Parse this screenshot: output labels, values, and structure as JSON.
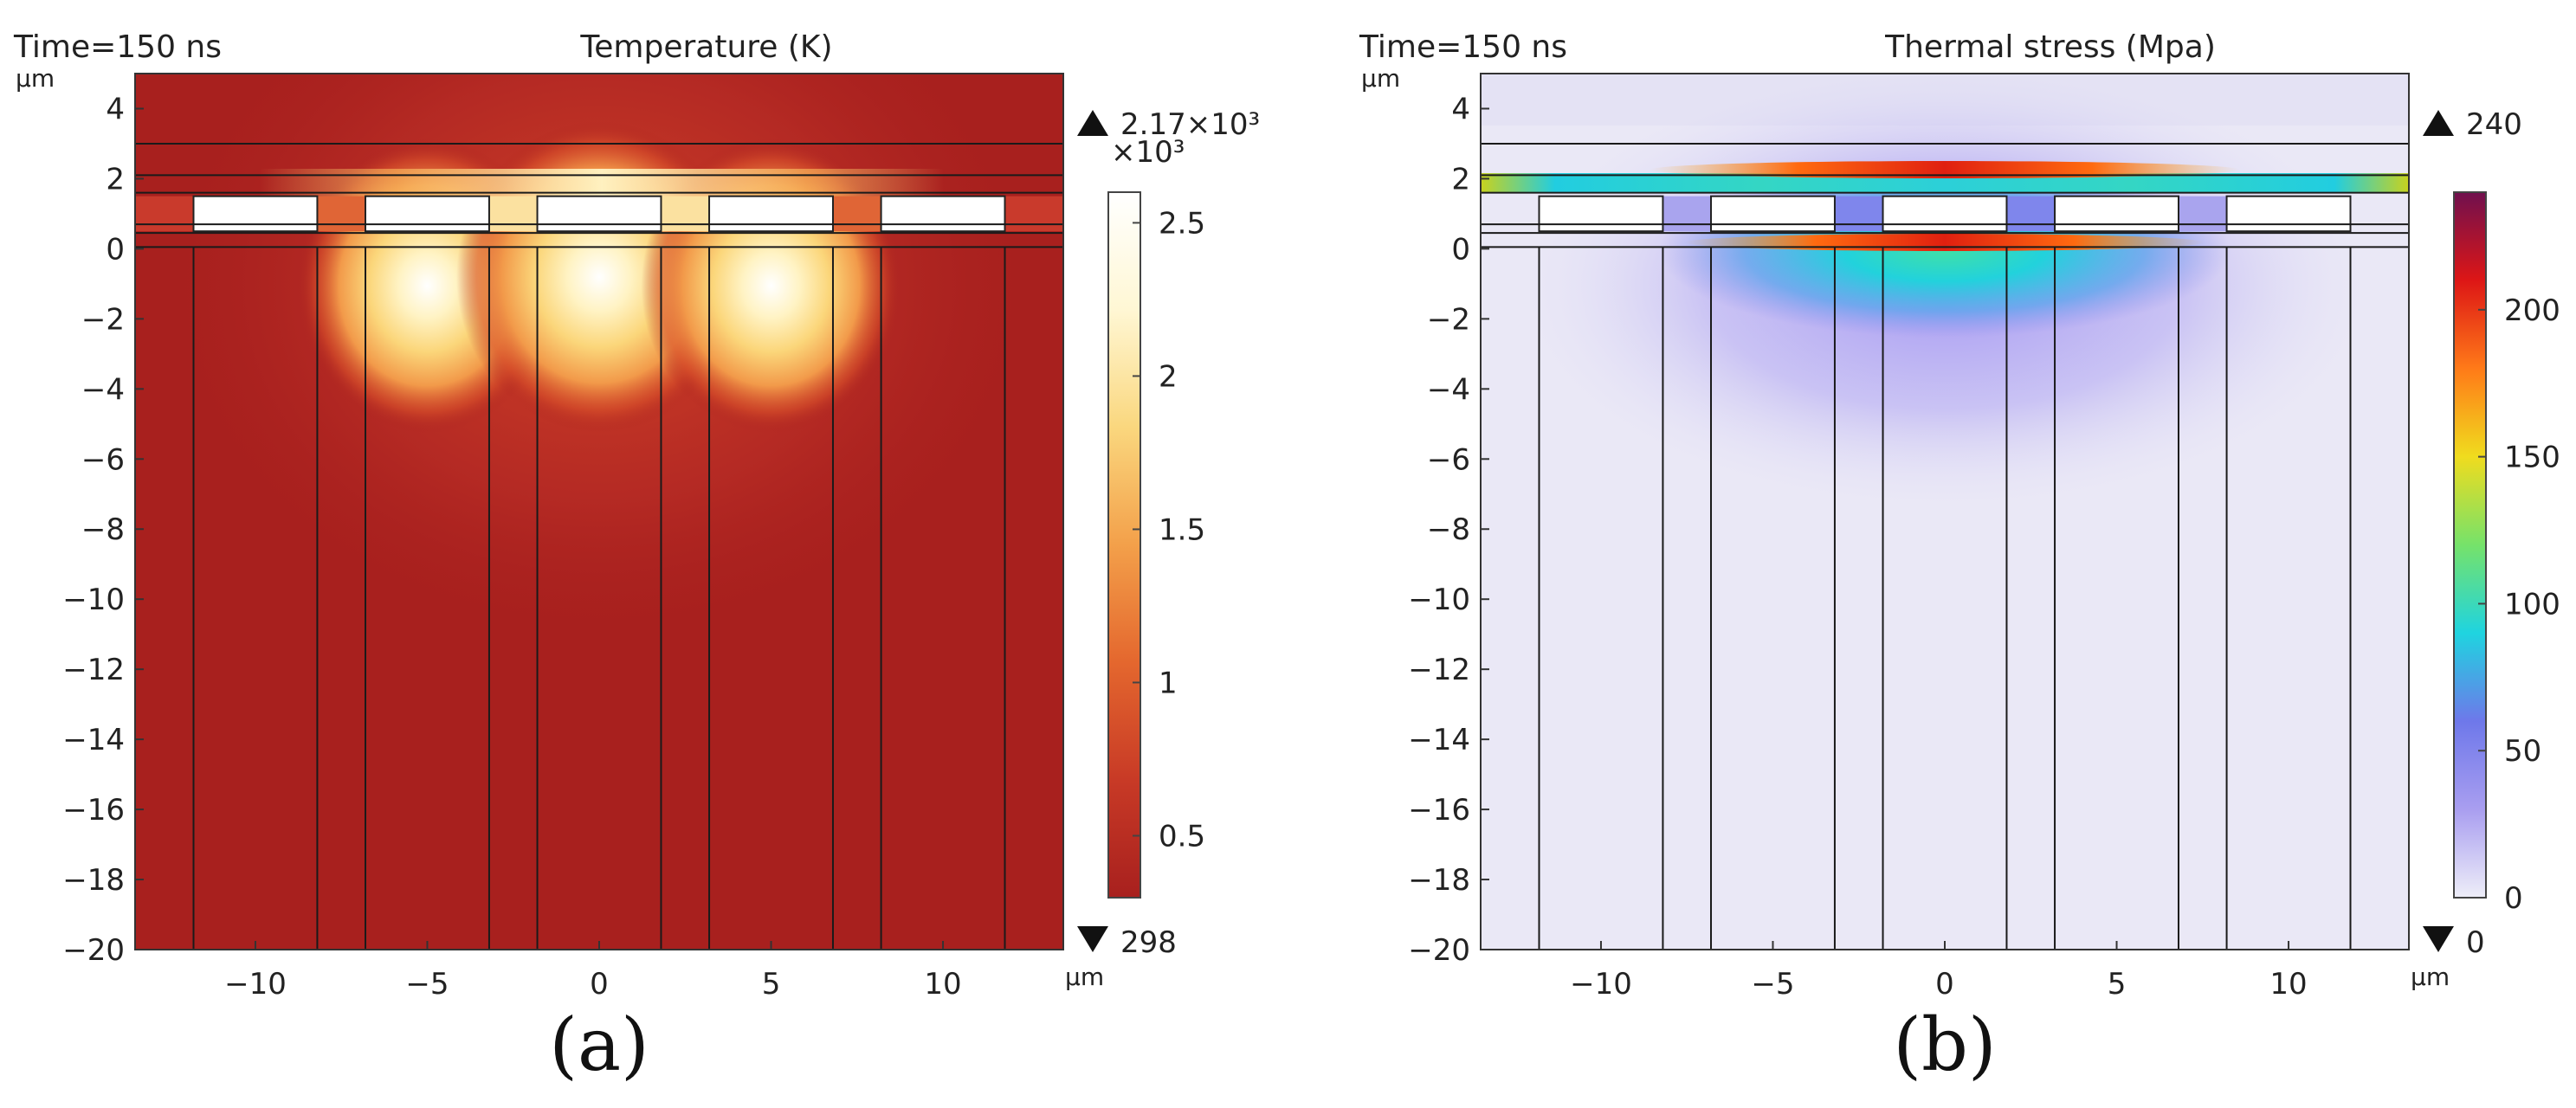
{
  "chart_data": [
    {
      "type": "heatmap",
      "panel_label": "(a)",
      "time_label": "Time=150 ns",
      "title": "Temperature (K)",
      "axis_unit": "µm",
      "xlim": [
        -13.5,
        13.5
      ],
      "ylim": [
        -20,
        5
      ],
      "x_ticks": [
        -10,
        -5,
        0,
        5,
        10
      ],
      "x_tick_labels": [
        "−10",
        "−5",
        "0",
        "5",
        "10"
      ],
      "y_ticks": [
        4,
        2,
        0,
        -2,
        -4,
        -6,
        -8,
        -10,
        -12,
        -14,
        -16,
        -18,
        -20
      ],
      "y_tick_labels": [
        "4",
        "2",
        "0",
        "−2",
        "−4",
        "−6",
        "−8",
        "−10",
        "−12",
        "−14",
        "−16",
        "−18",
        "−20"
      ],
      "colorbar": {
        "max_label": "2.17×10³",
        "min_label": "298",
        "multiplier_label": "×10³",
        "ticks": [
          2.5,
          2,
          1.5,
          1,
          0.5
        ],
        "tick_labels": [
          "2.5",
          "2",
          "1.5",
          "1",
          "0.5"
        ],
        "range": [
          0.298,
          2.6
        ],
        "colors": [
          "#a8201e",
          "#c83a26",
          "#e4672e",
          "#f3a04a",
          "#fad77e",
          "#fff7d4",
          "#ffffff"
        ]
      },
      "hotspots_x_um": [
        -5,
        0,
        5
      ],
      "peak_value": 2170
    },
    {
      "type": "heatmap",
      "panel_label": "(b)",
      "time_label": "Time=150 ns",
      "title": "Thermal stress (Mpa)",
      "axis_unit": "µm",
      "xlim": [
        -13.5,
        13.5
      ],
      "ylim": [
        -20,
        5
      ],
      "x_ticks": [
        -10,
        -5,
        0,
        5,
        10
      ],
      "x_tick_labels": [
        "−10",
        "−5",
        "0",
        "5",
        "10"
      ],
      "y_ticks": [
        4,
        2,
        0,
        -2,
        -4,
        -6,
        -8,
        -10,
        -12,
        -14,
        -16,
        -18,
        -20
      ],
      "y_tick_labels": [
        "4",
        "2",
        "0",
        "−2",
        "−4",
        "−6",
        "−8",
        "−10",
        "−12",
        "−14",
        "−16",
        "−18",
        "−20"
      ],
      "colorbar": {
        "max_label": "240",
        "min_label": "0",
        "ticks": [
          200,
          150,
          100,
          50,
          0
        ],
        "tick_labels": [
          "200",
          "150",
          "100",
          "50",
          "0"
        ],
        "range": [
          0,
          240
        ],
        "colors": [
          "#eeeef8",
          "#a99ef0",
          "#6e78ea",
          "#1fd4e0",
          "#76e26a",
          "#f0dc1e",
          "#ff7a18",
          "#dd1616",
          "#70104e"
        ]
      },
      "peak_value": 240
    }
  ],
  "structure": {
    "layer_lines_y_um": [
      3.0,
      2.1,
      1.6,
      0.7,
      0.45,
      0.05
    ],
    "pillar_boundaries_x_um": [
      -11.8,
      -8.2,
      -6.8,
      -3.2,
      -1.8,
      1.8,
      3.2,
      6.8,
      8.2,
      11.8
    ],
    "voids_x_um": [
      [
        -11.8,
        -8.2
      ],
      [
        -6.8,
        -3.2
      ],
      [
        -1.8,
        1.8
      ],
      [
        3.2,
        6.8
      ],
      [
        8.2,
        11.8
      ]
    ],
    "voids_y_um": [
      0.5,
      1.5
    ]
  }
}
